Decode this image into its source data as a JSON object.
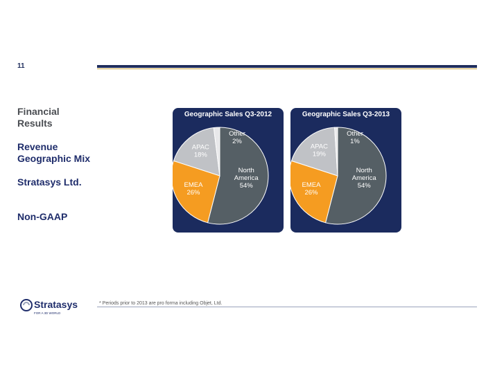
{
  "page": {
    "number": "11",
    "sidebar": {
      "financial": "Financial Results",
      "revenue": "Revenue Geographic Mix",
      "company": "Stratasys Ltd.",
      "nongaap": "Non-GAAP"
    },
    "footnote": "* Periods prior to 2013 are pro forma including Objet, Ltd.",
    "logo": {
      "wordmark": "Stratasys",
      "tagline": "FOR A 3D WORLD"
    }
  },
  "colors": {
    "navy": "#1b2b5e",
    "north_america": "#555f65",
    "emea": "#f59c21",
    "apac": "#c0c2c6",
    "other": "#e8e8ea"
  },
  "chart_data": [
    {
      "type": "pie",
      "title": "Geographic Sales Q3-2012",
      "slices": [
        {
          "label": "North America",
          "value": 54,
          "text": "54%"
        },
        {
          "label": "EMEA",
          "value": 26,
          "text": "26%"
        },
        {
          "label": "APAC",
          "value": 18,
          "text": "18%"
        },
        {
          "label": "Other",
          "value": 2,
          "text": "2%"
        }
      ]
    },
    {
      "type": "pie",
      "title": "Geographic Sales Q3-2013",
      "slices": [
        {
          "label": "North America",
          "value": 54,
          "text": "54%"
        },
        {
          "label": "EMEA",
          "value": 26,
          "text": "26%"
        },
        {
          "label": "APAC",
          "value": 19,
          "text": "19%"
        },
        {
          "label": "Other",
          "value": 1,
          "text": "1%"
        }
      ]
    }
  ]
}
